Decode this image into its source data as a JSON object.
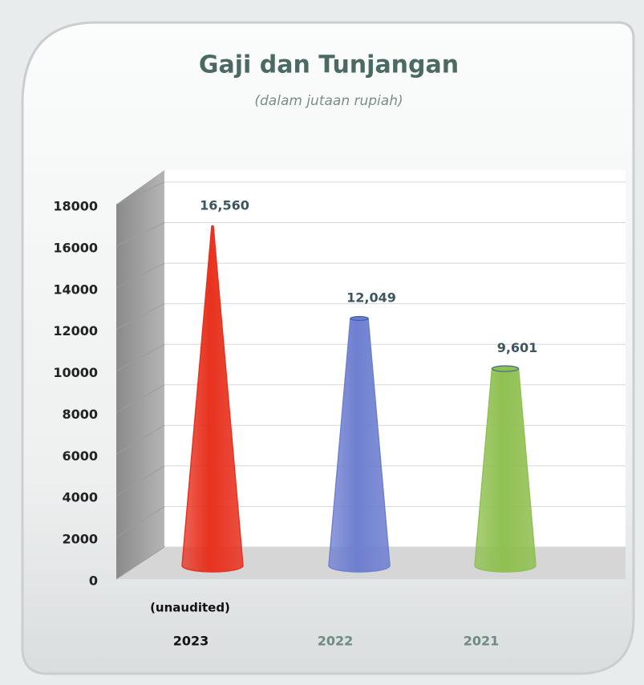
{
  "chart_data": {
    "type": "cone",
    "title": "Gaji dan Tunjangan",
    "subtitle": "(dalam jutaan rupiah)",
    "annotation": "(unaudited)",
    "categories": [
      "2023",
      "2022",
      "2021"
    ],
    "values": [
      16560,
      12049,
      9601
    ],
    "value_labels": [
      "16,560",
      "12,049",
      "9,601"
    ],
    "colors": [
      "#e8321f",
      "#6e7fd0",
      "#8fc050"
    ],
    "ylim": [
      0,
      18000
    ],
    "yticks": [
      0,
      2000,
      4000,
      6000,
      8000,
      10000,
      12000,
      14000,
      16000,
      18000
    ],
    "grid": true
  }
}
